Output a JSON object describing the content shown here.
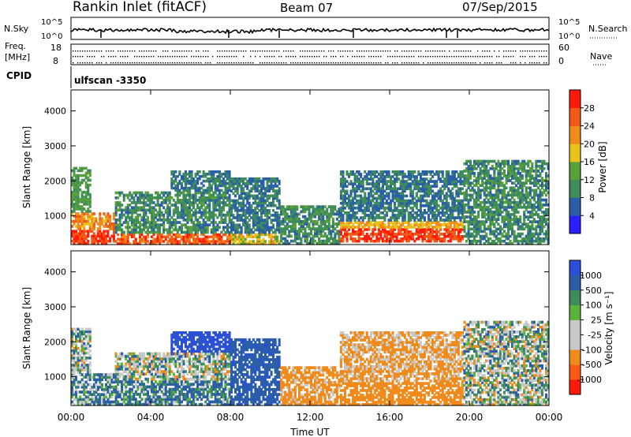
{
  "header": {
    "station": "Rankin Inlet (fitACF)",
    "beam": "Beam 07",
    "date": "07/Sep/2015"
  },
  "summary": {
    "nsky_label": "N.Sky",
    "nsky_ticks": [
      "10^5",
      "10^0"
    ],
    "nsearch_label": "N.Search",
    "nsearch_ticks": [
      "10^5",
      "10^0"
    ],
    "freq_label": "Freq.",
    "freq_unit": "[MHz]",
    "freq_ticks": [
      "18",
      "8"
    ],
    "nave_label": "Nave",
    "nave_ticks": [
      "60",
      "0"
    ],
    "cpid_label": "CPID",
    "cpid_value": "ulfscan -3350"
  },
  "colors": {
    "power_scale": [
      "#2b1fff",
      "#2a5fa8",
      "#3e8c5a",
      "#5aa03a",
      "#e8c21a",
      "#f08a1a",
      "#f05a14",
      "#ff1a0a"
    ],
    "velocity_scale": [
      "#ff1a0a",
      "#ff5a14",
      "#f08a1a",
      "#c8c8c8",
      "#c8c8c8",
      "#5ab43a",
      "#3e8c5a",
      "#2a5fa8",
      "#2b4fd8"
    ],
    "white_bg": "#ffffff"
  },
  "chart_data": [
    {
      "type": "heatmap",
      "panel": "power",
      "ylabel": "Slant Range [km]",
      "yticks": [
        "1000",
        "2000",
        "3000",
        "4000"
      ],
      "ylim": [
        180,
        4600
      ],
      "xlim": [
        "00:00",
        "00:00"
      ],
      "colorbar_label": "Power [dB]",
      "colorbar_ticks": [
        "4",
        "8",
        "12",
        "16",
        "20",
        "24",
        "28"
      ],
      "bands": [
        {
          "t0": 0.0,
          "t1": 2.2,
          "r0": 180,
          "r1": 600,
          "value": 28
        },
        {
          "t0": 0.0,
          "t1": 2.2,
          "r0": 600,
          "r1": 1100,
          "value": 22
        },
        {
          "t0": 0.0,
          "t1": 1.0,
          "r0": 1100,
          "r1": 2400,
          "value": 12
        },
        {
          "t0": 2.2,
          "t1": 8.0,
          "r0": 180,
          "r1": 500,
          "value": 26
        },
        {
          "t0": 2.2,
          "t1": 8.0,
          "r0": 500,
          "r1": 1700,
          "value": 10
        },
        {
          "t0": 5.0,
          "t1": 8.0,
          "r0": 1700,
          "r1": 2300,
          "value": 8
        },
        {
          "t0": 8.0,
          "t1": 10.5,
          "r0": 180,
          "r1": 500,
          "value": 18
        },
        {
          "t0": 8.0,
          "t1": 10.5,
          "r0": 500,
          "r1": 2100,
          "value": 8
        },
        {
          "t0": 10.5,
          "t1": 13.5,
          "r0": 180,
          "r1": 1300,
          "value": 10
        },
        {
          "t0": 13.5,
          "t1": 19.7,
          "r0": 250,
          "r1": 650,
          "value": 28
        },
        {
          "t0": 13.5,
          "t1": 19.7,
          "r0": 650,
          "r1": 850,
          "value": 20
        },
        {
          "t0": 13.5,
          "t1": 19.7,
          "r0": 850,
          "r1": 2300,
          "value": 8
        },
        {
          "t0": 19.7,
          "t1": 24.0,
          "r0": 180,
          "r1": 2600,
          "value": 10
        }
      ]
    },
    {
      "type": "heatmap",
      "panel": "velocity",
      "ylabel": "Slant Range [km]",
      "yticks": [
        "1000",
        "2000",
        "3000",
        "4000"
      ],
      "ylim": [
        180,
        4600
      ],
      "xlim": [
        "00:00",
        "00:00"
      ],
      "xticks": [
        "00:00",
        "04:00",
        "08:00",
        "12:00",
        "16:00",
        "20:00",
        "00:00"
      ],
      "xlabel": "Time UT",
      "colorbar_label": "Velocity [m s⁻¹]",
      "colorbar_ticks": [
        "-1000",
        "-500",
        "-100",
        "-25",
        "25",
        "100",
        "500",
        "1000"
      ],
      "bands": [
        {
          "t0": 0.0,
          "t1": 2.2,
          "r0": 180,
          "r1": 1100,
          "value": 80
        },
        {
          "t0": 0.0,
          "t1": 1.0,
          "r0": 1100,
          "r1": 2400,
          "value": 0
        },
        {
          "t0": 2.2,
          "t1": 8.0,
          "r0": 180,
          "r1": 900,
          "value": 120
        },
        {
          "t0": 2.2,
          "t1": 8.0,
          "r0": 900,
          "r1": 1700,
          "value": 0
        },
        {
          "t0": 5.0,
          "t1": 8.0,
          "r0": 1700,
          "r1": 2300,
          "value": 600
        },
        {
          "t0": 8.0,
          "t1": 10.5,
          "r0": 180,
          "r1": 2100,
          "value": 400
        },
        {
          "t0": 10.5,
          "t1": 13.5,
          "r0": 180,
          "r1": 1300,
          "value": -200
        },
        {
          "t0": 13.5,
          "t1": 19.7,
          "r0": 180,
          "r1": 850,
          "value": -300
        },
        {
          "t0": 13.5,
          "t1": 19.7,
          "r0": 850,
          "r1": 2300,
          "value": -150
        },
        {
          "t0": 19.7,
          "t1": 24.0,
          "r0": 180,
          "r1": 2600,
          "value": 0
        }
      ]
    }
  ]
}
